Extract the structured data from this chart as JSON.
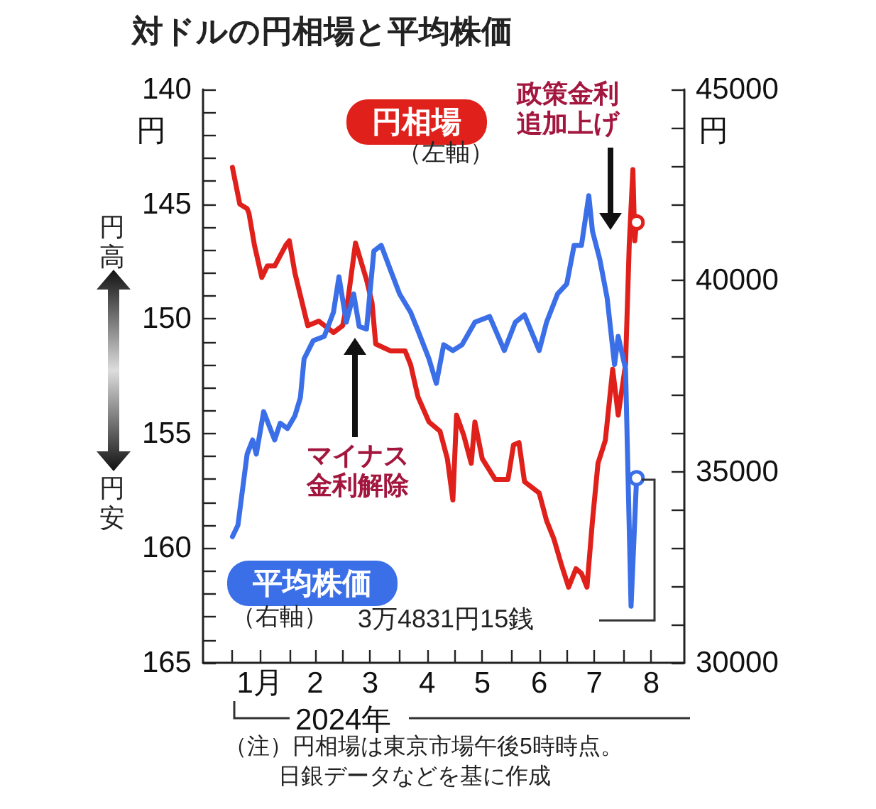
{
  "chart_data": {
    "type": "line",
    "title": "対ドルの円相場と平均株価",
    "xlabel": "2024年",
    "ylabel": "円",
    "y2label": "円",
    "legend": false,
    "grid": false,
    "xlim": [
      "2023-12-16",
      "2024-09-03"
    ],
    "xticks": [
      {
        "value": "2024-01-01",
        "label": null
      },
      {
        "value": "2024-02-01",
        "label": null
      },
      {
        "value": "2024-03-01",
        "label": null
      },
      {
        "value": "2024-04-01",
        "label": null
      },
      {
        "value": "2024-05-01",
        "label": null
      },
      {
        "value": "2024-06-01",
        "label": null
      },
      {
        "value": "2024-07-01",
        "label": null
      },
      {
        "value": "2024-08-01",
        "label": null
      },
      {
        "value": "2024-01-16",
        "label": "1月"
      },
      {
        "value": "2024-02-15",
        "label": "2"
      },
      {
        "value": "2024-03-16",
        "label": "3"
      },
      {
        "value": "2024-04-16",
        "label": "4"
      },
      {
        "value": "2024-05-16",
        "label": "5"
      },
      {
        "value": "2024-06-16",
        "label": "6"
      },
      {
        "value": "2024-07-16",
        "label": "7"
      },
      {
        "value": "2024-08-16",
        "label": "8"
      }
    ],
    "ylim": [
      165,
      140
    ],
    "yticks": [
      140,
      {
        "value": 141,
        "label": null
      },
      {
        "value": 142,
        "label": null
      },
      {
        "value": 143,
        "label": null
      },
      {
        "value": 144,
        "label": null
      },
      145,
      {
        "value": 146,
        "label": null
      },
      {
        "value": 147,
        "label": null
      },
      {
        "value": 148,
        "label": null
      },
      {
        "value": 149,
        "label": null
      },
      150,
      {
        "value": 151,
        "label": null
      },
      {
        "value": 152,
        "label": null
      },
      {
        "value": 153,
        "label": null
      },
      {
        "value": 154,
        "label": null
      },
      155,
      {
        "value": 156,
        "label": null
      },
      {
        "value": 157,
        "label": null
      },
      {
        "value": 158,
        "label": null
      },
      {
        "value": 159,
        "label": null
      },
      160,
      {
        "value": 161,
        "label": null
      },
      {
        "value": 162,
        "label": null
      },
      {
        "value": 163,
        "label": null
      },
      {
        "value": 164,
        "label": null
      },
      165
    ],
    "y2lim": [
      30000,
      45000
    ],
    "y2ticks": [
      30000,
      {
        "value": 31000,
        "label": null
      },
      {
        "value": 32000,
        "label": null
      },
      {
        "value": 33000,
        "label": null
      },
      {
        "value": 34000,
        "label": null
      },
      35000,
      {
        "value": 36000,
        "label": null
      },
      {
        "value": 37000,
        "label": null
      },
      {
        "value": 38000,
        "label": null
      },
      {
        "value": 39000,
        "label": null
      },
      40000,
      {
        "value": 41000,
        "label": null
      },
      {
        "value": 42000,
        "label": null
      },
      {
        "value": 43000,
        "label": null
      },
      {
        "value": 44000,
        "label": null
      },
      45000
    ],
    "series": [
      {
        "name": "円相場",
        "color": "#e0201b",
        "x": [
          "2024-01-01",
          "2024-01-05",
          "2024-01-09",
          "2024-01-10",
          "2024-01-13",
          "2024-01-17",
          "2024-01-20",
          "2024-01-24",
          "2024-01-30",
          "2024-02-01",
          "2024-02-04",
          "2024-02-11",
          "2024-02-17",
          "2024-02-25",
          "2024-03-01",
          "2024-03-04",
          "2024-03-08",
          "2024-03-14",
          "2024-03-17",
          "2024-03-19",
          "2024-03-27",
          "2024-04-04",
          "2024-04-07",
          "2024-04-11",
          "2024-04-17",
          "2024-04-23",
          "2024-04-27",
          "2024-04-30",
          "2024-05-02",
          "2024-05-06",
          "2024-05-10",
          "2024-05-12",
          "2024-05-16",
          "2024-05-23",
          "2024-05-30",
          "2024-06-02",
          "2024-06-05",
          "2024-06-08",
          "2024-06-16",
          "2024-06-20",
          "2024-06-24",
          "2024-06-28",
          "2024-07-02",
          "2024-07-06",
          "2024-07-09",
          "2024-07-12",
          "2024-07-15",
          "2024-07-18",
          "2024-07-22",
          "2024-07-26",
          "2024-07-29",
          "2024-08-02",
          "2024-08-04",
          "2024-08-06",
          "2024-08-07",
          "2024-08-08"
        ],
        "values": [
          143.4,
          145.0,
          145.2,
          145.4,
          146.8,
          148.2,
          147.7,
          147.7,
          146.8,
          146.6,
          148.0,
          150.3,
          150.1,
          150.6,
          150.3,
          149.1,
          146.7,
          148.3,
          149.3,
          151.1,
          151.4,
          151.4,
          152.0,
          153.4,
          154.5,
          154.9,
          156.1,
          157.9,
          154.2,
          155.1,
          156.3,
          154.5,
          156.1,
          157.0,
          157.0,
          155.5,
          155.4,
          157.1,
          157.6,
          158.8,
          159.6,
          160.7,
          161.7,
          160.9,
          161.1,
          161.7,
          158.8,
          156.3,
          155.3,
          152.2,
          154.2,
          152.0,
          146.8,
          143.5,
          146.6,
          145.8
        ]
      },
      {
        "name": "平均株価",
        "color": "#3b6fe8",
        "axis": "y2",
        "x": [
          "2024-01-01",
          "2024-01-04",
          "2024-01-09",
          "2024-01-12",
          "2024-01-14",
          "2024-01-18",
          "2024-01-24",
          "2024-01-27",
          "2024-01-31",
          "2024-02-04",
          "2024-02-07",
          "2024-02-09",
          "2024-02-14",
          "2024-02-20",
          "2024-02-25",
          "2024-02-28",
          "2024-03-03",
          "2024-03-07",
          "2024-03-10",
          "2024-03-14",
          "2024-03-18",
          "2024-03-22",
          "2024-03-27",
          "2024-04-01",
          "2024-04-07",
          "2024-04-11",
          "2024-04-17",
          "2024-04-21",
          "2024-04-25",
          "2024-04-30",
          "2024-05-05",
          "2024-05-12",
          "2024-05-20",
          "2024-05-28",
          "2024-06-03",
          "2024-06-08",
          "2024-06-16",
          "2024-06-20",
          "2024-06-26",
          "2024-07-01",
          "2024-07-05",
          "2024-07-09",
          "2024-07-13",
          "2024-07-15",
          "2024-07-19",
          "2024-07-23",
          "2024-07-27",
          "2024-07-29",
          "2024-08-02",
          "2024-08-05",
          "2024-08-08"
        ],
        "values": [
          33300,
          33600,
          35460,
          35830,
          35460,
          36570,
          35830,
          36270,
          36130,
          36460,
          36940,
          37950,
          38430,
          38540,
          39170,
          40100,
          38910,
          39650,
          38800,
          38730,
          40770,
          40920,
          40280,
          39650,
          39170,
          38690,
          37950,
          37310,
          38320,
          38170,
          38320,
          38910,
          39060,
          38170,
          38910,
          39100,
          38170,
          38910,
          39650,
          39910,
          40920,
          40920,
          42220,
          41290,
          40550,
          39540,
          37800,
          38540,
          37690,
          31480,
          34831
        ]
      }
    ],
    "annotations": [
      "（左軸）",
      "（右軸）",
      "マイナス金利解除",
      "政策金利追加上げ",
      "3万4831円15銭",
      "円高",
      "円安",
      "（注）円相場は東京市場午後5時時点。",
      "日銀データなどを基に作成"
    ]
  }
}
